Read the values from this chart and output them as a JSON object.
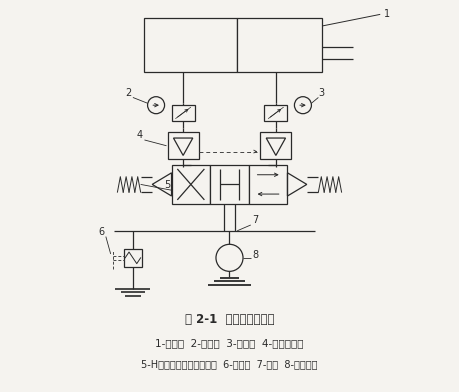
{
  "title": "图 2-1  液压泵站原理图",
  "caption_line1": "1-液压缸  2-单向阀  3-节流阀  4-液控单向阀",
  "caption_line2": "5-H型三位四通电磁换向阀  6-溢流阀  7-油箱  8-液压泵；",
  "bg_color": "#f5f3ef",
  "line_color": "#2a2a2a",
  "dashed_color": "#444444"
}
